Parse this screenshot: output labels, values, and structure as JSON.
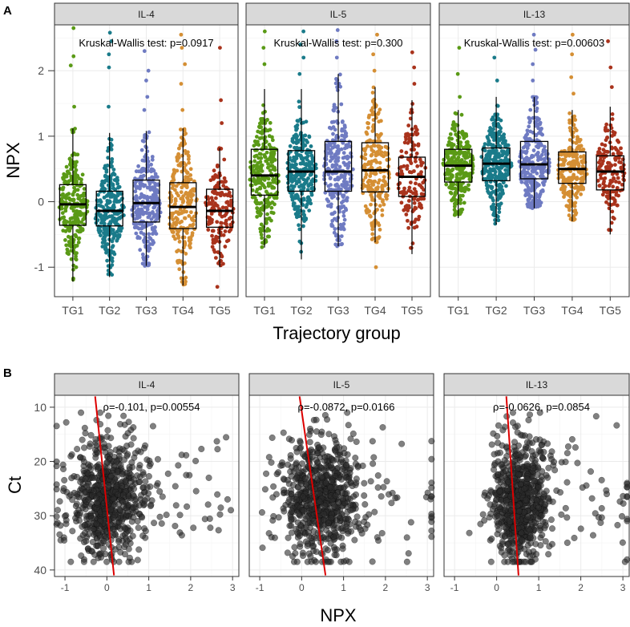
{
  "colors": {
    "TG1": "#5a9a16",
    "TG2": "#1a7b8a",
    "TG3": "#6f7bc2",
    "TG4": "#d58f34",
    "TG5": "#a9331c",
    "points_b": "#2b2b2b",
    "fit_line": "#dd0000"
  },
  "chart_data": [
    {
      "panel_label": "A",
      "type": "box+beeswarm",
      "xlabel": "Trajectory group",
      "ylabel": "NPX",
      "categories": [
        "TG1",
        "TG2",
        "TG3",
        "TG4",
        "TG5"
      ],
      "ylim": [
        -1.45,
        2.7
      ],
      "yticks": [
        -1,
        0,
        1,
        2
      ],
      "ytick_labels": [
        "-1",
        "0",
        "1",
        "2"
      ],
      "facets": [
        {
          "title": "IL-4",
          "annotation": "Kruskal-Wallis test: p=0.0917",
          "boxes": [
            {
              "group": "TG1",
              "q1": -0.36,
              "median": -0.04,
              "q3": 0.26,
              "whisker_low": -1.22,
              "whisker_high": 1.12,
              "n": 260,
              "extra_high": [
                1.45,
                2.08,
                2.22,
                2.65
              ]
            },
            {
              "group": "TG2",
              "q1": -0.37,
              "median": -0.14,
              "q3": 0.16,
              "whisker_low": -1.15,
              "whisker_high": 1.05,
              "n": 280,
              "extra_high": [
                1.45,
                2.05,
                2.25,
                2.45,
                2.58
              ]
            },
            {
              "group": "TG3",
              "q1": -0.31,
              "median": -0.02,
              "q3": 0.33,
              "whisker_low": -0.98,
              "whisker_high": 1.08,
              "n": 280,
              "extra_high": [
                1.4,
                1.6,
                1.85,
                2.0,
                2.3
              ]
            },
            {
              "group": "TG4",
              "q1": -0.41,
              "median": -0.08,
              "q3": 0.29,
              "whisker_low": -1.28,
              "whisker_high": 1.12,
              "n": 230,
              "extra_high": [
                1.4,
                1.8,
                2.1,
                2.35,
                2.55
              ]
            },
            {
              "group": "TG5",
              "q1": -0.39,
              "median": -0.14,
              "q3": 0.19,
              "whisker_low": -1.0,
              "whisker_high": 0.82,
              "n": 150,
              "extra_high": [
                1.2,
                1.55,
                2.35
              ],
              "extra_low": [
                -1.3
              ]
            }
          ]
        },
        {
          "title": "IL-5",
          "annotation": "Kruskal-Wallis test: p=0.300",
          "boxes": [
            {
              "group": "TG1",
              "q1": 0.1,
              "median": 0.4,
              "q3": 0.8,
              "whisker_low": -0.7,
              "whisker_high": 1.72,
              "n": 260,
              "extra_high": [
                2.1,
                2.35,
                2.6
              ]
            },
            {
              "group": "TG2",
              "q1": 0.16,
              "median": 0.46,
              "q3": 0.78,
              "whisker_low": -0.88,
              "whisker_high": 1.72,
              "n": 280,
              "extra_high": [
                1.95,
                2.2,
                2.4,
                2.6
              ]
            },
            {
              "group": "TG3",
              "q1": 0.16,
              "median": 0.46,
              "q3": 0.92,
              "whisker_low": -0.68,
              "whisker_high": 1.95,
              "n": 280,
              "extra_high": [
                2.2,
                2.45,
                2.62
              ]
            },
            {
              "group": "TG4",
              "q1": 0.15,
              "median": 0.48,
              "q3": 0.9,
              "whisker_low": -0.62,
              "whisker_high": 1.75,
              "n": 230,
              "extra_high": [
                2.0,
                2.25,
                2.55
              ],
              "extra_low": [
                -1.0
              ]
            },
            {
              "group": "TG5",
              "q1": 0.08,
              "median": 0.38,
              "q3": 0.68,
              "whisker_low": -0.8,
              "whisker_high": 1.55,
              "n": 150,
              "extra_high": [
                1.8,
                2.05,
                2.28
              ]
            }
          ]
        },
        {
          "title": "IL-13",
          "annotation": "Kruskal-Wallis test: p=0.00603",
          "boxes": [
            {
              "group": "TG1",
              "q1": 0.3,
              "median": 0.55,
              "q3": 0.8,
              "whisker_low": -0.25,
              "whisker_high": 1.4,
              "n": 260,
              "extra_high": [
                1.6,
                1.95,
                2.35
              ]
            },
            {
              "group": "TG2",
              "q1": 0.32,
              "median": 0.58,
              "q3": 0.82,
              "whisker_low": -0.35,
              "whisker_high": 1.6,
              "n": 300,
              "extra_high": [
                1.85,
                2.2
              ]
            },
            {
              "group": "TG3",
              "q1": 0.35,
              "median": 0.57,
              "q3": 0.92,
              "whisker_low": -0.1,
              "whisker_high": 1.6,
              "n": 280,
              "extra_high": [
                1.85,
                2.1,
                2.32,
                2.55
              ]
            },
            {
              "group": "TG4",
              "q1": 0.28,
              "median": 0.5,
              "q3": 0.76,
              "whisker_low": -0.3,
              "whisker_high": 1.4,
              "n": 230,
              "extra_high": [
                1.65,
                1.9,
                2.25,
                2.55
              ]
            },
            {
              "group": "TG5",
              "q1": 0.18,
              "median": 0.46,
              "q3": 0.7,
              "whisker_low": -0.5,
              "whisker_high": 1.45,
              "n": 150,
              "extra_high": [
                1.75,
                2.05,
                2.45
              ]
            }
          ]
        }
      ]
    },
    {
      "panel_label": "B",
      "type": "scatter",
      "xlabel": "NPX",
      "ylabel": "Ct",
      "xlim": [
        -1.25,
        3.15
      ],
      "ylim": [
        41.2,
        7.8
      ],
      "xticks": [
        -1,
        0,
        1,
        2,
        3
      ],
      "xtick_labels": [
        "-1",
        "0",
        "1",
        "2",
        "3"
      ],
      "yticks": [
        10,
        20,
        30,
        40
      ],
      "ytick_labels": [
        "10",
        "20",
        "30",
        "40"
      ],
      "y_reversed": true,
      "facets": [
        {
          "title": "IL-4",
          "annotation": "ρ=-0.101, p=0.00554",
          "n_points": 750,
          "x_center": 0.0,
          "x_spread": 0.45,
          "fit_line": [
            {
              "x": -0.28,
              "y": 8
            },
            {
              "x": 0.17,
              "y": 41
            }
          ]
        },
        {
          "title": "IL-5",
          "annotation": "ρ=-0.0872, p=0.0166",
          "n_points": 750,
          "x_center": 0.45,
          "x_spread": 0.45,
          "fit_line": [
            {
              "x": -0.05,
              "y": 8
            },
            {
              "x": 0.57,
              "y": 41
            }
          ]
        },
        {
          "title": "IL-13",
          "annotation": "ρ=-0.0626, p=0.0854",
          "n_points": 750,
          "x_center": 0.55,
          "x_spread": 0.35,
          "fit_line": [
            {
              "x": 0.23,
              "y": 8
            },
            {
              "x": 0.52,
              "y": 41
            }
          ]
        }
      ]
    }
  ]
}
